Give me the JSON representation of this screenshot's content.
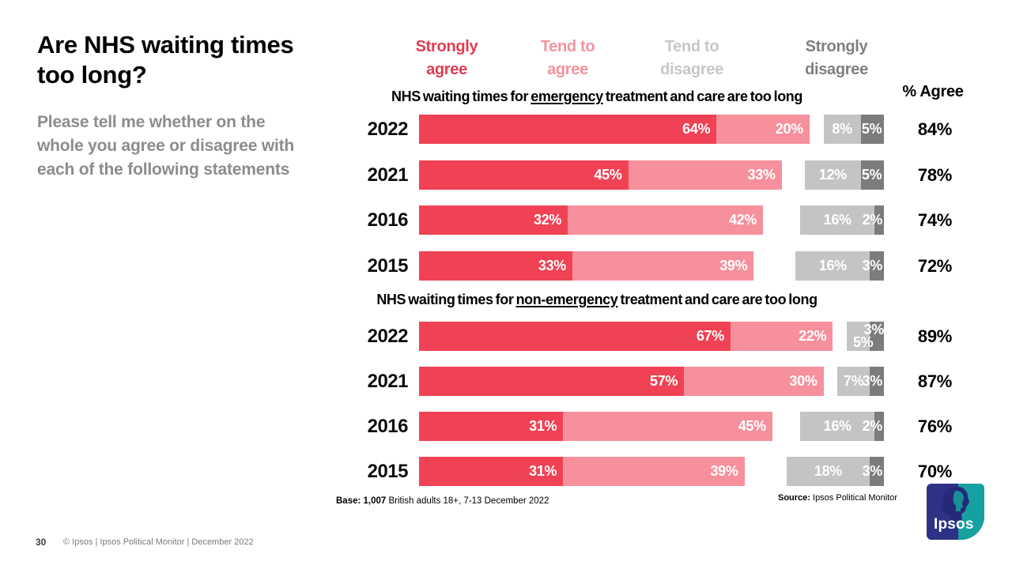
{
  "slide": {
    "title": "Are NHS waiting times too long?",
    "subtitle": "Please tell me whether on the whole you agree or disagree with each of the following statements",
    "agree_header": "% Agree",
    "base_bold": "Base: 1,007",
    "base_rest": " British adults 18+,  7-13 December 2022",
    "source_bold": "Source:",
    "source_rest": " Ipsos Political Monitor",
    "page_number": "30",
    "footer_text": "© Ipsos | Ipsos Political Monitor | December 2022",
    "logo_text": "Ipsos"
  },
  "legend": {
    "items": [
      {
        "label": "Strongly\nagree",
        "color": "#E23C52"
      },
      {
        "label": "Tend to\nagree",
        "color": "#F4929E"
      },
      {
        "label": "Tend to\ndisagree",
        "color": "#C7C7C7"
      },
      {
        "label": "Strongly\ndisagree",
        "color": "#7F7F7F"
      }
    ]
  },
  "colors": {
    "strongly_agree": "#F04254",
    "tend_agree": "#F6909C",
    "tend_disagree": "#C4C4C4",
    "strongly_disagree": "#7C7C7C"
  },
  "chart_data": [
    {
      "type": "bar",
      "subtype": "stacked-horizontal-percent",
      "title_before": "NHS waiting times for ",
      "title_underlined": "emergency",
      "title_after": " treatment and care are too long",
      "categories": [
        "2022",
        "2021",
        "2016",
        "2015"
      ],
      "series": [
        {
          "name": "Strongly agree",
          "values": [
            64,
            45,
            32,
            33
          ]
        },
        {
          "name": "Tend to agree",
          "values": [
            20,
            33,
            42,
            39
          ]
        },
        {
          "name": "Tend to disagree",
          "values": [
            8,
            12,
            16,
            16
          ]
        },
        {
          "name": "Strongly disagree",
          "values": [
            5,
            5,
            2,
            3
          ]
        }
      ],
      "agree_totals": [
        84,
        78,
        74,
        72
      ],
      "xlim": [
        0,
        100
      ],
      "unit": "%",
      "legend_position": "top",
      "grid": false
    },
    {
      "type": "bar",
      "subtype": "stacked-horizontal-percent",
      "title_before": "NHS waiting times for ",
      "title_underlined": "non-emergency",
      "title_after": " treatment and care are too long",
      "categories": [
        "2022",
        "2021",
        "2016",
        "2015"
      ],
      "series": [
        {
          "name": "Strongly agree",
          "values": [
            67,
            57,
            31,
            31
          ]
        },
        {
          "name": "Tend to agree",
          "values": [
            22,
            30,
            45,
            39
          ]
        },
        {
          "name": "Tend to disagree",
          "values": [
            5,
            7,
            16,
            18
          ]
        },
        {
          "name": "Strongly disagree",
          "values": [
            3,
            3,
            2,
            3
          ]
        }
      ],
      "agree_totals": [
        89,
        87,
        76,
        70
      ],
      "xlim": [
        0,
        100
      ],
      "unit": "%",
      "legend_position": "top",
      "grid": false
    }
  ]
}
